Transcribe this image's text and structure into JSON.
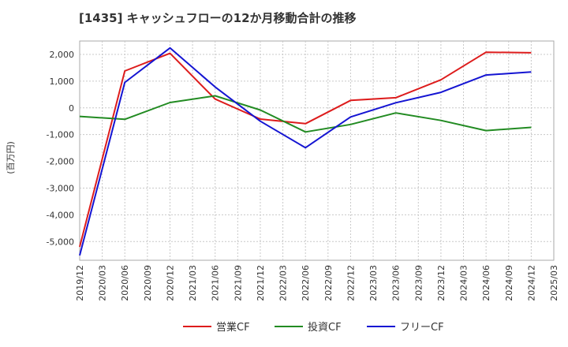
{
  "chart_data": {
    "type": "line",
    "title": "[1435]  キャッシュフローの12か月移動合計の推移",
    "ylabel": "(百万円)",
    "xlabel": "",
    "ylim": [
      -5700,
      2500
    ],
    "yticks": [
      2000,
      1000,
      0,
      -1000,
      -2000,
      -3000,
      -4000,
      -5000
    ],
    "ytick_labels": [
      "2,000",
      "1,000",
      "0",
      "-1,000",
      "-2,000",
      "-3,000",
      "-4,000",
      "-5,000"
    ],
    "categories": [
      "2019/12",
      "2020/03",
      "2020/06",
      "2020/09",
      "2020/12",
      "2021/03",
      "2021/06",
      "2021/09",
      "2021/12",
      "2022/03",
      "2022/06",
      "2022/09",
      "2022/12",
      "2023/03",
      "2023/06",
      "2023/09",
      "2023/12",
      "2024/03",
      "2024/06",
      "2024/09",
      "2024/12",
      "2025/03"
    ],
    "grid": true,
    "legend_position": "bottom",
    "series": [
      {
        "name": "営業CF",
        "color": "#dd1c1c",
        "x": [
          "2019/12",
          "2020/06",
          "2020/12",
          "2021/06",
          "2021/12",
          "2022/06",
          "2022/12",
          "2023/06",
          "2023/12",
          "2024/06",
          "2024/12"
        ],
        "values": [
          -5200,
          1380,
          2040,
          330,
          -420,
          -590,
          280,
          380,
          1050,
          2080,
          2060
        ]
      },
      {
        "name": "投資CF",
        "color": "#228b22",
        "x": [
          "2019/12",
          "2020/06",
          "2020/12",
          "2021/06",
          "2021/12",
          "2022/06",
          "2022/12",
          "2023/06",
          "2023/12",
          "2024/06",
          "2024/12"
        ],
        "values": [
          -320,
          -430,
          200,
          450,
          -80,
          -900,
          -620,
          -190,
          -470,
          -850,
          -730
        ]
      },
      {
        "name": "フリーCF",
        "color": "#1414d2",
        "x": [
          "2019/12",
          "2020/06",
          "2020/12",
          "2021/06",
          "2021/12",
          "2022/06",
          "2022/12",
          "2023/06",
          "2023/12",
          "2024/06",
          "2024/12"
        ],
        "values": [
          -5520,
          950,
          2240,
          780,
          -500,
          -1490,
          -340,
          190,
          580,
          1230,
          1340
        ]
      }
    ]
  }
}
